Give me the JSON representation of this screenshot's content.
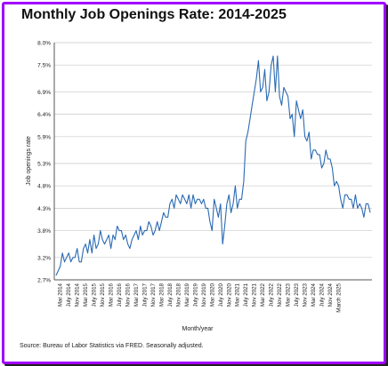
{
  "title": "Monthly Job Openings Rate: 2014-2025",
  "source": "Source: Bureau of Labor Statistics via FRED. Seasonally adjusted.",
  "colors": {
    "line": "#2a6ab3",
    "frame": "#a100ff",
    "grid": "#c8c8c8",
    "text": "#222222"
  },
  "chart_data": {
    "type": "line",
    "title": "Monthly Job Openings Rate: 2014-2025",
    "xlabel": "Month/year",
    "ylabel": "Job openings rate",
    "grid": true,
    "legend": "none",
    "ylim": [
      2.7,
      8.0
    ],
    "y_ticks": [
      2.7,
      3.2,
      3.8,
      4.3,
      4.8,
      5.3,
      5.9,
      6.4,
      6.9,
      7.5,
      8.0
    ],
    "y_tick_labels": [
      "2.7%",
      "3.2%",
      "3.8%",
      "4.3%",
      "4.8%",
      "5.3%",
      "5.9%",
      "6.4%",
      "6.9%",
      "7.5%",
      "8.0%"
    ],
    "x_tick_labels": [
      "Mar 2014",
      "July 2014",
      "Nov 2014",
      "Mar 2015",
      "July 2015",
      "Nov 2015",
      "Mar 2016",
      "July 2016",
      "Nov 2016",
      "Mar 2017",
      "July 2017",
      "Nov 2017",
      "Mar 2018",
      "July 2018",
      "Nov 2018",
      "Mar 2019",
      "July 2019",
      "Nov 2019",
      "Mar 2020",
      "July 2020",
      "Nov 2020",
      "Mar 2021",
      "July 2021",
      "Nov 2021",
      "Mar 2022",
      "July 2022",
      "Nov 2022",
      "Mar 2023",
      "July 2023",
      "Nov 2023",
      "Mar 2024",
      "July 2024",
      "Nov 2024",
      "March 2025"
    ],
    "series": [
      {
        "x_start": "Jan 2014",
        "values": [
          2.8,
          2.9,
          3.0,
          3.3,
          3.1,
          3.2,
          3.3,
          3.1,
          3.2,
          3.2,
          3.4,
          3.1,
          3.1,
          3.4,
          3.5,
          3.3,
          3.6,
          3.3,
          3.7,
          3.4,
          3.5,
          3.8,
          3.6,
          3.5,
          3.6,
          3.7,
          3.4,
          3.7,
          3.6,
          3.9,
          3.8,
          3.8,
          3.6,
          3.7,
          3.5,
          3.4,
          3.6,
          3.7,
          3.8,
          3.6,
          3.9,
          3.7,
          3.8,
          3.8,
          4.0,
          3.9,
          3.7,
          3.8,
          4.0,
          3.8,
          4.0,
          4.2,
          4.1,
          4.1,
          4.4,
          4.5,
          4.3,
          4.6,
          4.5,
          4.4,
          4.6,
          4.5,
          4.4,
          4.6,
          4.3,
          4.6,
          4.4,
          4.5,
          4.5,
          4.4,
          4.5,
          4.3,
          4.3,
          4.0,
          3.8,
          4.5,
          4.3,
          4.1,
          4.4,
          3.5,
          3.9,
          4.4,
          4.6,
          4.2,
          4.4,
          4.8,
          4.3,
          4.5,
          4.5,
          4.9,
          5.8,
          6.0,
          6.3,
          6.6,
          6.9,
          7.2,
          7.6,
          6.9,
          7.0,
          7.4,
          6.7,
          6.9,
          7.5,
          7.7,
          6.9,
          7.7,
          6.8,
          6.6,
          7.0,
          6.9,
          6.8,
          6.3,
          6.4,
          5.9,
          6.7,
          6.5,
          6.3,
          6.5,
          5.9,
          5.8,
          6.0,
          5.4,
          5.6,
          5.6,
          5.5,
          5.5,
          5.2,
          5.3,
          5.6,
          5.4,
          5.4,
          5.2,
          4.8,
          4.9,
          4.8,
          4.5,
          4.3,
          4.6,
          4.6,
          4.5,
          4.5,
          4.3,
          4.6,
          4.3,
          4.4,
          4.3,
          4.1,
          4.4,
          4.4,
          4.2
        ]
      }
    ]
  }
}
